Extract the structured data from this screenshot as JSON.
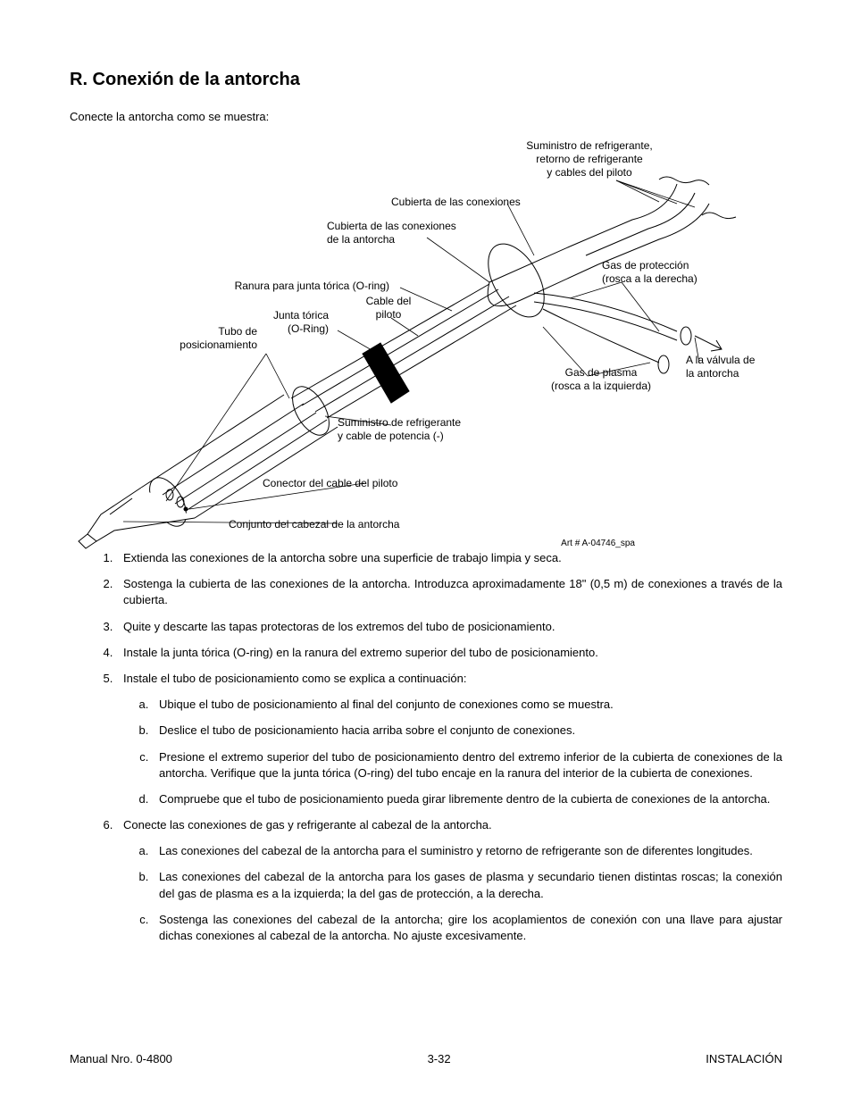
{
  "heading": "R.   Conexión de la antorcha",
  "intro": "Conecte la antorcha como se muestra:",
  "labels": {
    "coolant_supply": "Suministro de refrigerante,\nretorno de refrigerante\ny cables del piloto",
    "lead_cover": "Cubierta de las conexiones",
    "torch_lead_cover": "Cubierta de las conexiones\nde la antorcha",
    "oring_groove": "Ranura para junta tórica (O-ring)",
    "pilot_cable": "Cable del\npiloto",
    "oring": "Junta tórica\n(O-Ring)",
    "positioning_tube": "Tubo de\nposicionamiento",
    "shield_gas": "Gas de protección\n(rosca a la derecha)",
    "plasma_gas": "Gas de plasma\n(rosca a la izquierda)",
    "to_torch_valve": "A la válvula de\nla antorcha",
    "coolant_power": "Suministro de refrigerante\ny cable de potencia (-)",
    "pilot_connector": "Conector del cable del piloto",
    "head_assembly": "Conjunto del cabezal de la antorcha"
  },
  "art_number": "Art # A-04746_spa",
  "steps": {
    "s1": "Extienda las conexiones de la antorcha sobre una superficie de trabajo limpia y seca.",
    "s2": "Sostenga la cubierta de las conexiones de la antorcha. Introduzca aproximadamente 18\" (0,5 m) de conexiones a través de la cubierta.",
    "s3": "Quite y descarte las tapas protectoras de los extremos del tubo de posicionamiento.",
    "s4": "Instale la junta tórica (O-ring) en la ranura del extremo superior del tubo de posicionamiento.",
    "s5": "Instale el tubo de posicionamiento como se explica a continuación:",
    "s5a": "Ubique el tubo de posicionamiento al final del conjunto de conexiones como se muestra.",
    "s5b": "Deslice el tubo de posicionamiento hacia arriba sobre el conjunto de conexiones.",
    "s5c": "Presione el extremo superior del tubo de posicionamiento dentro del extremo inferior de la cubierta de conexiones de la antorcha. Verifique que la junta tórica (O-ring) del tubo encaje en la ranura del interior de la cubierta de conexiones.",
    "s5d": "Compruebe que el tubo de posicionamiento pueda girar libremente dentro de la cubierta de conexiones de la antorcha.",
    "s6": "Conecte las conexiones de gas y refrigerante al cabezal de la antorcha.",
    "s6a": "Las conexiones del cabezal de la antorcha para el suministro y retorno de refrigerante son de diferentes longitudes.",
    "s6b": "Las conexiones del cabezal de la antorcha para los gases de plasma y secundario tienen distintas roscas; la conexión del gas de plasma es a la izquierda; la del gas de protección, a la derecha.",
    "s6c": "Sostenga las conexiones del cabezal de la antorcha; gire los acoplamientos de conexión con una llave para ajustar dichas conexiones al cabezal de la antorcha. No ajuste excesivamente."
  },
  "footer": {
    "left": "Manual Nro. 0-4800",
    "center": "3-32",
    "right": "INSTALACIÓN"
  },
  "diagram_style": {
    "stroke": "#000000",
    "stroke_width": 1,
    "fill": "#ffffff"
  }
}
